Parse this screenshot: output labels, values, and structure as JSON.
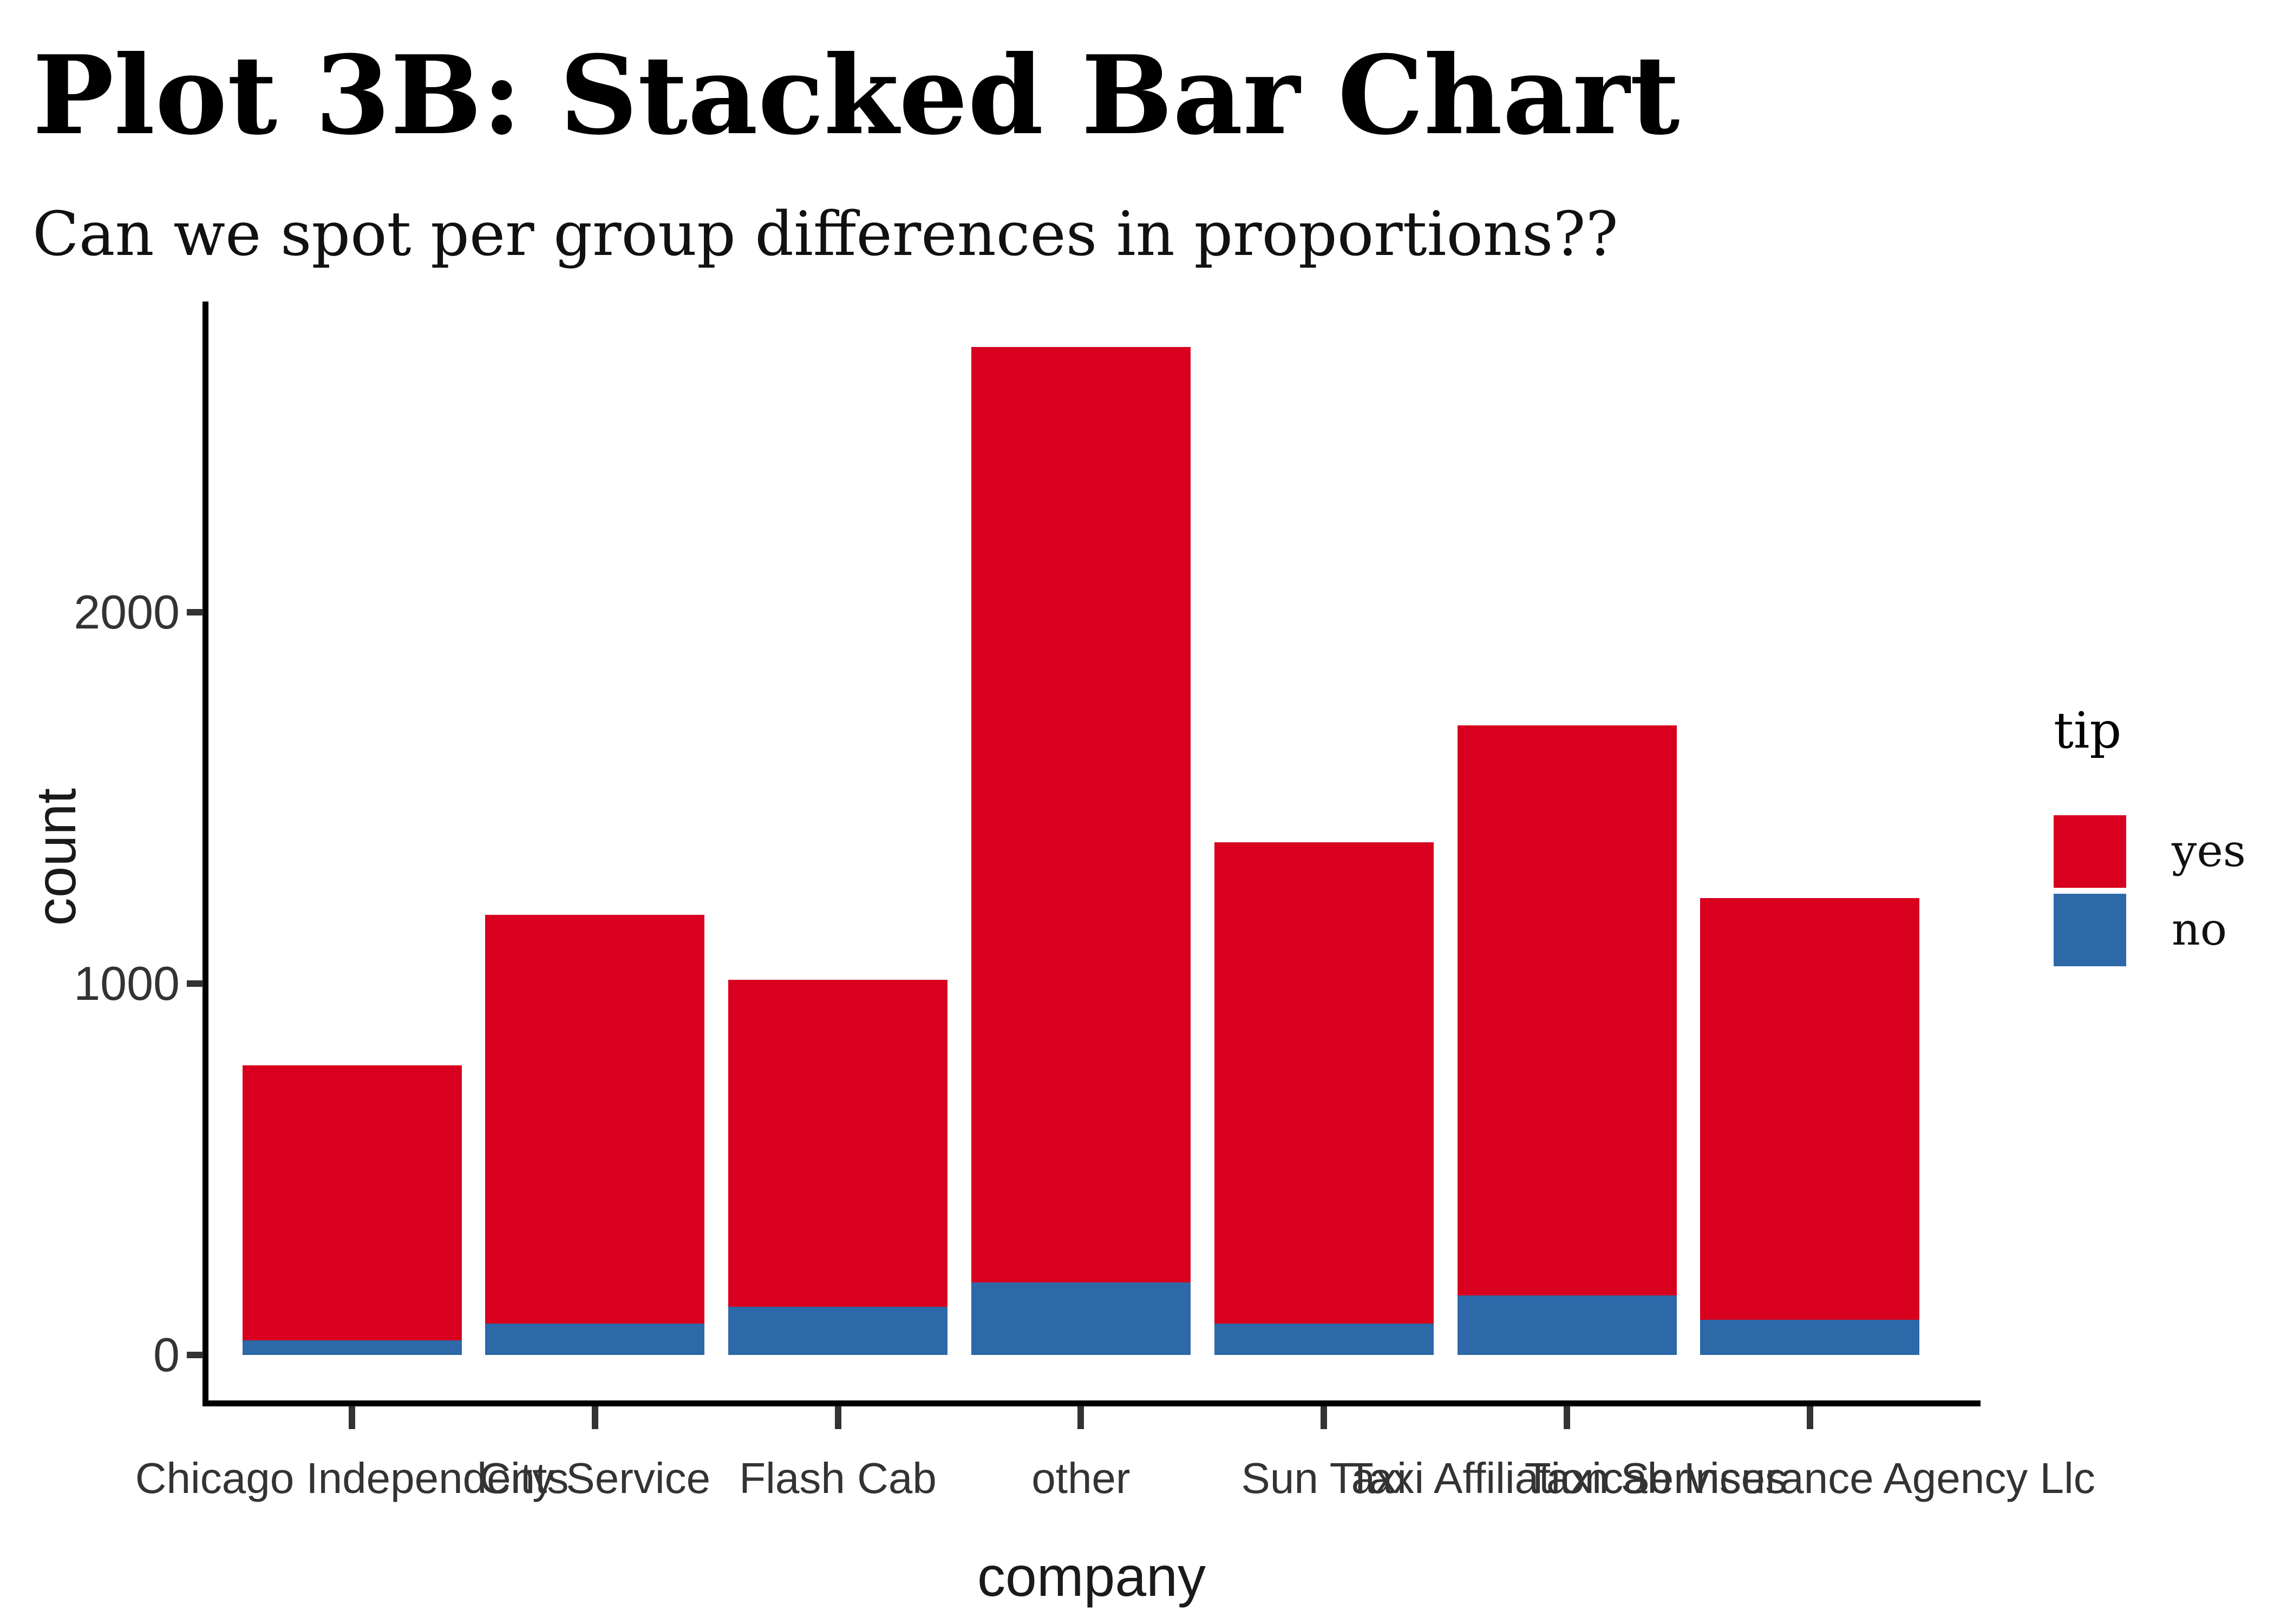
{
  "chart": {
    "title": "Plot 3B: Stacked Bar Chart",
    "subtitle": "Can we spot per group differences in proportions??",
    "xlabel": "company",
    "ylabel": "count",
    "legend": {
      "title": "tip",
      "entries": [
        {
          "label": "yes",
          "color": "#d8001e"
        },
        {
          "label": "no",
          "color": "#2d68a8"
        }
      ]
    },
    "colors": {
      "yes": "#d8001e",
      "no": "#2d68a8",
      "axis_line": "#000000",
      "axis_text": "#333333"
    }
  },
  "chart_data": {
    "type": "bar",
    "stacked": true,
    "title": "Plot 3B: Stacked Bar Chart",
    "subtitle": "Can we spot per group differences in proportions??",
    "xlabel": "company",
    "ylabel": "count",
    "categories": [
      "Chicago Independents",
      "City Service",
      "Flash Cab",
      "other",
      "Sun Taxi",
      "Taxi Affiliation Services",
      "Taxicab Insurance Agency Llc"
    ],
    "series": [
      {
        "name": "yes",
        "color": "#d8001e",
        "values": [
          740,
          1100,
          880,
          2520,
          1295,
          1535,
          1135
        ]
      },
      {
        "name": "no",
        "color": "#2d68a8",
        "values": [
          40,
          85,
          130,
          195,
          85,
          160,
          95
        ]
      }
    ],
    "totals": [
      780,
      1185,
      1010,
      2715,
      1380,
      1695,
      1230
    ],
    "stack_order_bottom_to_top": [
      "no",
      "yes"
    ],
    "ylim": [
      0,
      2800
    ],
    "yticks": [
      0,
      1000,
      2000
    ],
    "grid": false,
    "legend_position": "right",
    "legend_title": "tip"
  }
}
